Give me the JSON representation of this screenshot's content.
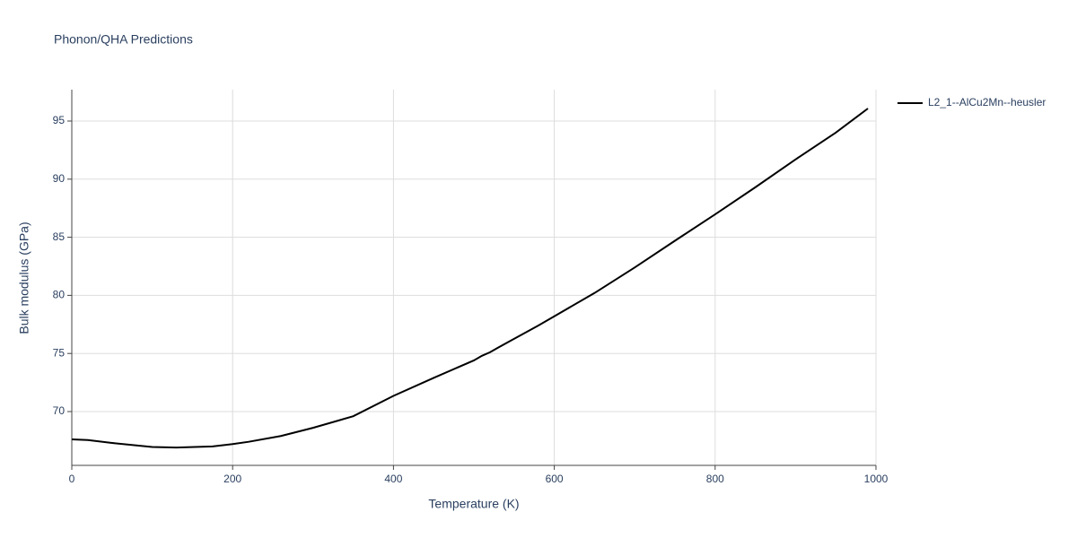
{
  "chart_data": {
    "type": "line",
    "title": "Phonon/QHA Predictions",
    "x_label": "Temperature (K)",
    "y_label": "Bulk modulus (GPa)",
    "x": [
      0,
      20,
      50,
      100,
      130,
      175,
      200,
      220,
      260,
      300,
      350,
      400,
      450,
      500,
      510,
      520,
      530,
      580,
      600,
      650,
      700,
      750,
      800,
      850,
      900,
      950,
      990
    ],
    "series": [
      {
        "name": "L2_1--AlCu2Mn--heusler",
        "color": "#000000",
        "values": [
          67.61,
          67.55,
          67.3,
          66.95,
          66.9,
          67.0,
          67.2,
          67.4,
          67.9,
          68.6,
          69.6,
          71.35,
          72.9,
          74.4,
          74.8,
          75.1,
          75.5,
          77.4,
          78.2,
          80.2,
          82.4,
          84.7,
          86.97,
          89.3,
          91.7,
          94.0,
          96.08
        ]
      }
    ],
    "xlim": [
      0,
      1000
    ],
    "xticks": [
      0,
      200,
      400,
      600,
      800,
      1000
    ],
    "ylim": [
      65.37,
      97.7
    ],
    "yticks": [
      70,
      75,
      80,
      85,
      90,
      95
    ],
    "grid": true,
    "legend": "right"
  }
}
